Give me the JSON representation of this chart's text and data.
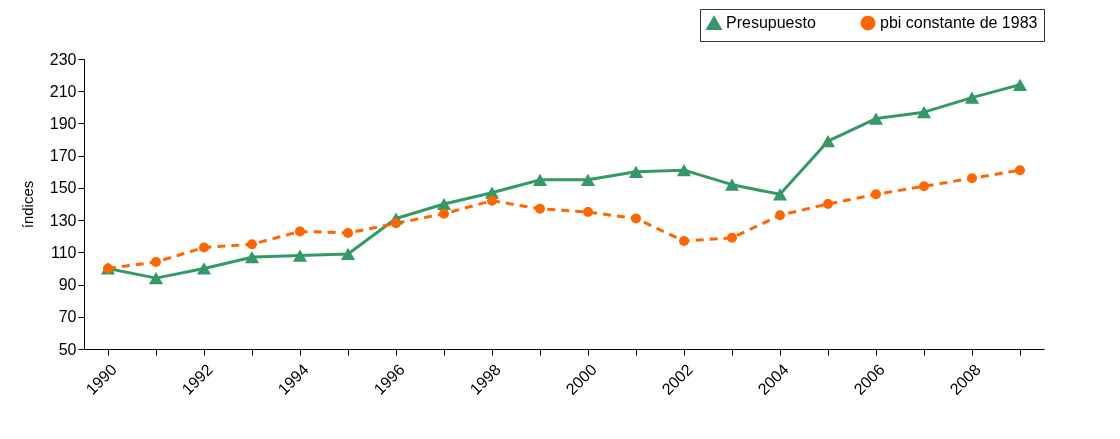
{
  "chart_data": {
    "type": "line",
    "ylabel": "índices",
    "categories": [
      "1990",
      null,
      "1992",
      null,
      "1994",
      null,
      "1996",
      null,
      "1998",
      null,
      "2000",
      null,
      "2002",
      null,
      "2004",
      null,
      "2006",
      null,
      "2008",
      null
    ],
    "series": [
      {
        "name": "Presupuesto",
        "color": "#339966",
        "marker": "triangle",
        "line_style": "solid",
        "values": [
          100,
          94,
          100,
          107,
          108,
          109,
          131,
          140,
          147,
          155,
          155,
          160,
          161,
          152,
          146,
          179,
          193,
          197,
          206,
          214
        ]
      },
      {
        "name": "pbi constante de 1983",
        "color": "#ff6600",
        "marker": "circle",
        "line_style": "dashed",
        "values": [
          100,
          104,
          113,
          115,
          123,
          122,
          128,
          134,
          142,
          137,
          135,
          131,
          117,
          119,
          133,
          140,
          146,
          151,
          156,
          161
        ]
      }
    ],
    "ylim": [
      50,
      230
    ],
    "yticks": [
      50,
      70,
      90,
      110,
      130,
      150,
      170,
      190,
      210,
      230
    ],
    "grid": false,
    "legend": "top right"
  }
}
